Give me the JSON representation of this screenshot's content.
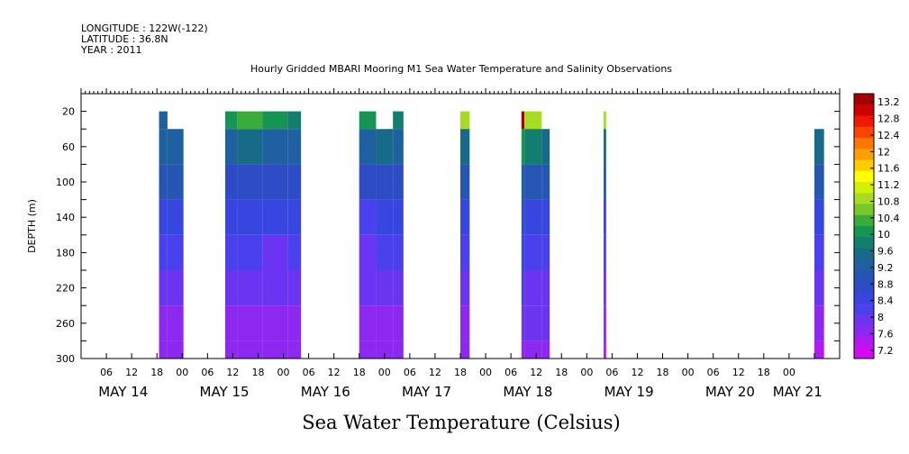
{
  "header": {
    "longitude": "LONGITUDE : 122W(-122)",
    "latitude": "LATITUDE : 36.8N",
    "year": "YEAR : 2011"
  },
  "chart_data": {
    "type": "heatmap",
    "title": "Hourly Gridded MBARI Mooring M1 Sea Water Temperature and Salinity Observations",
    "xlabel": "Sea Water Temperature (Celsius)",
    "ylabel": "DEPTH (m)",
    "y_ticks": [
      20,
      60,
      100,
      140,
      180,
      220,
      260,
      300
    ],
    "ylim": [
      300,
      0
    ],
    "xlim_hours": [
      0,
      180
    ],
    "x_hour_ticks": [
      {
        "hour": 6,
        "label": "06"
      },
      {
        "hour": 12,
        "label": "12"
      },
      {
        "hour": 18,
        "label": "18"
      },
      {
        "hour": 24,
        "label": "00"
      },
      {
        "hour": 30,
        "label": "06"
      },
      {
        "hour": 36,
        "label": "12"
      },
      {
        "hour": 42,
        "label": "18"
      },
      {
        "hour": 48,
        "label": "00"
      },
      {
        "hour": 54,
        "label": "06"
      },
      {
        "hour": 60,
        "label": "12"
      },
      {
        "hour": 66,
        "label": "18"
      },
      {
        "hour": 72,
        "label": "00"
      },
      {
        "hour": 78,
        "label": "06"
      },
      {
        "hour": 84,
        "label": "12"
      },
      {
        "hour": 90,
        "label": "18"
      },
      {
        "hour": 96,
        "label": "00"
      },
      {
        "hour": 102,
        "label": "06"
      },
      {
        "hour": 108,
        "label": "12"
      },
      {
        "hour": 114,
        "label": "18"
      },
      {
        "hour": 120,
        "label": "00"
      },
      {
        "hour": 126,
        "label": "06"
      },
      {
        "hour": 132,
        "label": "12"
      },
      {
        "hour": 138,
        "label": "18"
      },
      {
        "hour": 144,
        "label": "00"
      },
      {
        "hour": 150,
        "label": "06"
      },
      {
        "hour": 156,
        "label": "12"
      },
      {
        "hour": 162,
        "label": "18"
      },
      {
        "hour": 168,
        "label": "00"
      }
    ],
    "x_day_labels": [
      {
        "hour": 10,
        "label": "MAY 14"
      },
      {
        "hour": 34,
        "label": "MAY 15"
      },
      {
        "hour": 58,
        "label": "MAY 16"
      },
      {
        "hour": 82,
        "label": "MAY 17"
      },
      {
        "hour": 106,
        "label": "MAY 18"
      },
      {
        "hour": 130,
        "label": "MAY 19"
      },
      {
        "hour": 154,
        "label": "MAY 20"
      },
      {
        "hour": 170,
        "label": "MAY 21"
      }
    ],
    "colorbar": {
      "labels": [
        "13.2",
        "12.8",
        "12.4",
        "12",
        "11.6",
        "11.2",
        "10.8",
        "10.4",
        "10",
        "9.6",
        "9.2",
        "8.8",
        "8.4",
        "8",
        "7.6",
        "7.2"
      ],
      "colors": [
        "#a40000",
        "#cc0000",
        "#ee1a00",
        "#ff4400",
        "#ff7700",
        "#ffa000",
        "#ffcc00",
        "#ffff00",
        "#d4f000",
        "#a8dc22",
        "#78c828",
        "#3aac3a",
        "#159452",
        "#127e6e",
        "#176a88",
        "#1e60a0",
        "#2656b4",
        "#2e4cc6",
        "#3846e0",
        "#4a40ee",
        "#6a34f0",
        "#8c28f0",
        "#b418f0",
        "#d408f4"
      ]
    },
    "segments": [
      {
        "start": 18.5,
        "end": 20.5,
        "profile": [
          9.4,
          9.2,
          8.9,
          8.6,
          8.3,
          8.0,
          7.8,
          7.6
        ]
      },
      {
        "start": 20.5,
        "end": 24.3,
        "profile": [
          null,
          9.2,
          8.9,
          8.6,
          8.2,
          7.9,
          7.8,
          7.7
        ]
      },
      {
        "start": 34.2,
        "end": 37.0,
        "profile": [
          10.0,
          9.4,
          8.8,
          8.5,
          8.2,
          8.0,
          7.8,
          7.6
        ]
      },
      {
        "start": 37.0,
        "end": 43.0,
        "profile": [
          10.3,
          9.5,
          8.8,
          8.4,
          8.1,
          7.9,
          7.8,
          7.7
        ]
      },
      {
        "start": 43.0,
        "end": 49.0,
        "profile": [
          10.2,
          9.4,
          8.7,
          8.4,
          8.0,
          7.9,
          7.8,
          7.7
        ]
      },
      {
        "start": 49.0,
        "end": 52.2,
        "profile": [
          9.9,
          9.2,
          8.7,
          8.4,
          8.1,
          7.9,
          7.8,
          7.8
        ]
      },
      {
        "start": 66.0,
        "end": 70.0,
        "profile": [
          10.2,
          9.4,
          8.8,
          8.3,
          8.0,
          7.9,
          7.8,
          7.7
        ]
      },
      {
        "start": 70.0,
        "end": 74.0,
        "profile": [
          null,
          9.5,
          8.8,
          8.4,
          8.1,
          7.9,
          7.8,
          7.7
        ]
      },
      {
        "start": 74.0,
        "end": 76.5,
        "profile": [
          9.8,
          9.3,
          8.8,
          8.4,
          8.1,
          7.9,
          7.8,
          7.7
        ]
      },
      {
        "start": 90.0,
        "end": 92.2,
        "profile": [
          10.9,
          9.6,
          9.0,
          8.6,
          8.3,
          8.0,
          7.8,
          7.6
        ]
      },
      {
        "start": 104.5,
        "end": 105.2,
        "profile": [
          13.2,
          10.2,
          9.2,
          8.7,
          8.4,
          8.1,
          7.9,
          7.7
        ]
      },
      {
        "start": 105.2,
        "end": 109.3,
        "profile": [
          11.0,
          9.9,
          9.1,
          8.6,
          8.3,
          8.0,
          7.9,
          7.8
        ]
      },
      {
        "start": 109.3,
        "end": 111.2,
        "profile": [
          null,
          9.6,
          9.0,
          8.6,
          8.3,
          8.0,
          7.9,
          7.8
        ]
      },
      {
        "start": 124.0,
        "end": 124.6,
        "profile": [
          10.8,
          9.6,
          9.0,
          8.6,
          8.3,
          8.0,
          7.8,
          7.5
        ]
      },
      {
        "start": 174.0,
        "end": 176.3,
        "profile": [
          null,
          9.5,
          9.0,
          8.6,
          8.3,
          8.0,
          7.8,
          7.4
        ]
      }
    ]
  }
}
